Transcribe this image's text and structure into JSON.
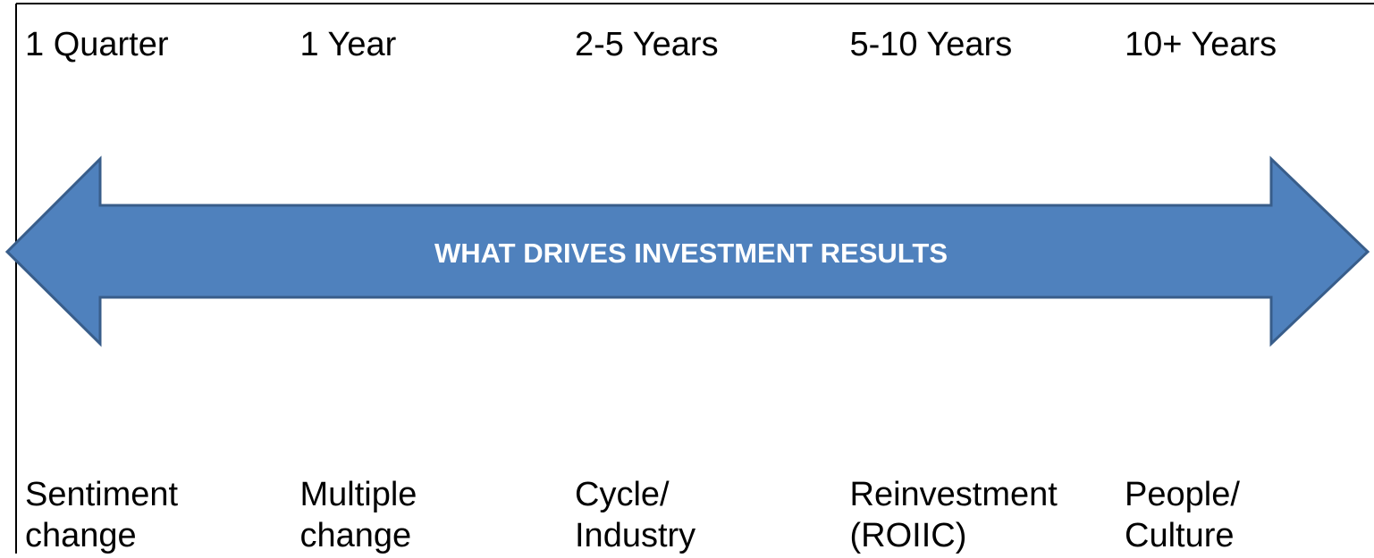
{
  "title": "WHAT DRIVES INVESTMENT RESULTS",
  "horizons": [
    {
      "period": "1 Quarter",
      "driver": [
        "Sentiment",
        "change"
      ]
    },
    {
      "period": "1 Year",
      "driver": [
        "Multiple",
        "change"
      ]
    },
    {
      "period": "2-5 Years",
      "driver": [
        "Cycle/",
        "Industry"
      ]
    },
    {
      "period": "5-10 Years",
      "driver": [
        "Reinvestment",
        "(ROIIC)"
      ]
    },
    {
      "period": "10+ Years",
      "driver": [
        "People/",
        "Culture"
      ]
    }
  ]
}
